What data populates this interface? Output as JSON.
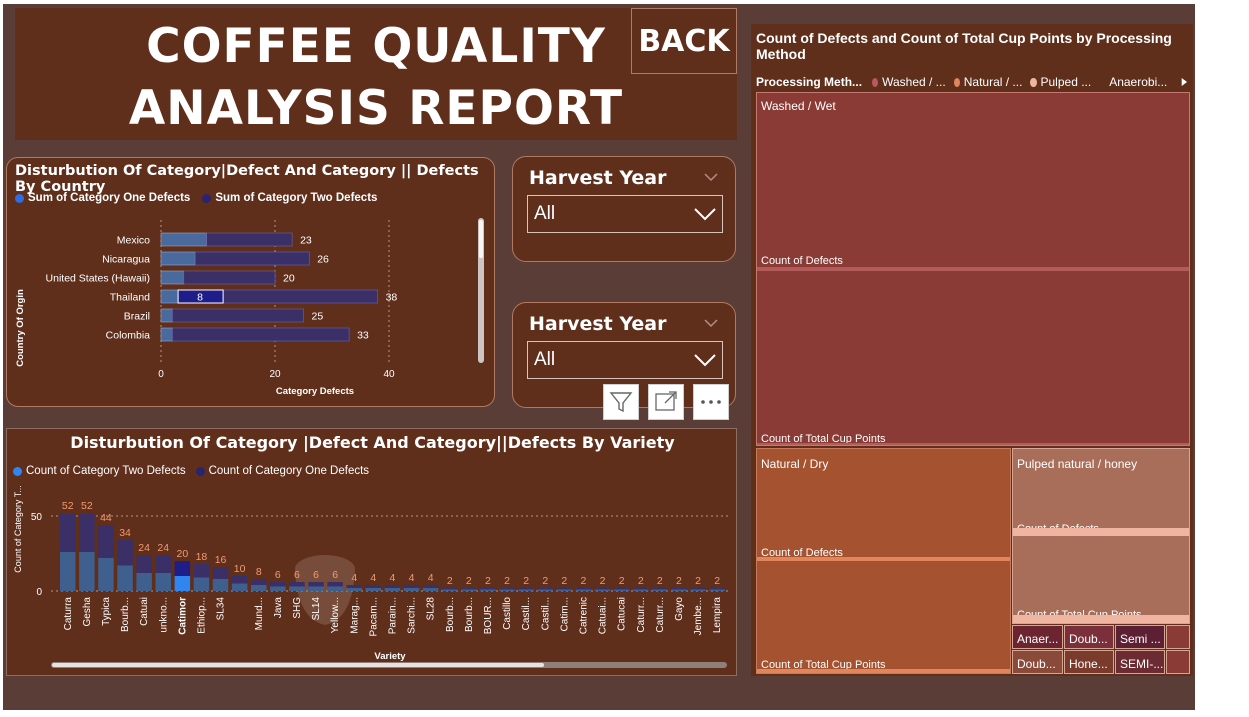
{
  "header": {
    "title_line1": "COFFEE QUALITY",
    "title_line2": "ANALYSIS REPORT",
    "back_label": "BACK"
  },
  "country_chart": {
    "title": "Disturbution Of Category|Defect And Category || Defects By Country",
    "legend": [
      "Sum of Category One Defects",
      "Sum of Category Two Defects"
    ],
    "ylabel": "Country Of Orgin",
    "xlabel": "Category Defects"
  },
  "slicer1": {
    "title": "Harvest Year",
    "value": "All"
  },
  "slicer2": {
    "title": "Harvest Year",
    "value": "All"
  },
  "variety_chart": {
    "title": "Disturbution Of Category |Defect And Category||Defects By Variety",
    "legend": [
      "Count of Category Two Defects",
      "Count of Category One Defects"
    ],
    "ylabel": "Count of Category T...",
    "xlabel": "Variety"
  },
  "treemap": {
    "title": "Count of Defects and Count of Total Cup Points by Processing Method",
    "legend_label": "Processing Meth...",
    "legend_items": [
      "Washed / ...",
      "Natural / ...",
      "Pulped ...",
      "Anaerobi..."
    ],
    "colors": {
      "washed": "#8b3b35",
      "natural": "#a4522f",
      "pulped": "#a86e5a",
      "anaerobic": "#6b2430"
    },
    "cells": {
      "washed": "Washed / Wet",
      "natural": "Natural / Dry",
      "pulped": "Pulped natural / honey",
      "defects": "Count of Defects",
      "cup_points": "Count of Total Cup Points"
    },
    "small_cells": [
      "Anaer...",
      "Doub...",
      "Semi ...",
      "Doub...",
      "Hone...",
      "SEMI-..."
    ]
  },
  "chart_data": [
    {
      "type": "bar",
      "orientation": "horizontal",
      "stacked": true,
      "title": "Disturbution Of Category|Defect And Category || Defects By Country",
      "xlabel": "Category Defects",
      "ylabel": "Country Of Orgin",
      "xlim": [
        0,
        45
      ],
      "xticks": [
        0,
        20,
        40
      ],
      "grid": true,
      "legend_position": "top-left",
      "categories": [
        "Mexico",
        "Nicaragua",
        "United States (Hawaii)",
        "Thailand",
        "Brazil",
        "Colombia"
      ],
      "totals": [
        23,
        26,
        20,
        38,
        25,
        33
      ],
      "series": [
        {
          "name": "Sum of Category One Defects",
          "color": "#4a6a9e",
          "values": [
            8,
            6,
            4,
            3,
            2,
            2
          ]
        },
        {
          "name": "Sum of Category Two Defects",
          "color": "#3a2f66",
          "values": [
            15,
            20,
            16,
            35,
            23,
            31
          ]
        }
      ],
      "annotations": [
        {
          "category": "Thailand",
          "label": "8"
        }
      ]
    },
    {
      "type": "bar",
      "stacked": true,
      "title": "Disturbution Of Category |Defect And Category||Defects By Variety",
      "xlabel": "Variety",
      "ylabel": "Count of Category T...",
      "ylim": [
        0,
        60
      ],
      "yticks": [
        0,
        50
      ],
      "grid": true,
      "legend_position": "top-left",
      "categories": [
        "Caturra",
        "Gesha",
        "Typica",
        "Bourb...",
        "Catuai",
        "unkno...",
        "Catimor",
        "Ethiop...",
        "SL34",
        "",
        "Mund...",
        "Java",
        "SHG",
        "SL14",
        "Yellow...",
        "Marag...",
        "Pacam...",
        "Parain...",
        "Sarchi...",
        "SL28",
        "Bourb...",
        "Bourb...",
        "BOUR...",
        "Castillo",
        "Castil...",
        "Castil...",
        "Catim...",
        "Catrenic",
        "Catuai...",
        "Catucai",
        "Caturr...",
        "Caturr...",
        "Gayo",
        "Jembe...",
        "Lempira"
      ],
      "totals": [
        52,
        52,
        44,
        34,
        24,
        24,
        20,
        18,
        16,
        10,
        8,
        6,
        6,
        6,
        6,
        4,
        4,
        4,
        4,
        4,
        2,
        2,
        2,
        2,
        2,
        2,
        2,
        2,
        2,
        2,
        2,
        2,
        2,
        2,
        2
      ],
      "highlighted_category": "Catimor",
      "series": [
        {
          "name": "Count of Category Two Defects",
          "color": "#3f5f8e",
          "values": [
            26,
            26,
            22,
            17,
            12,
            12,
            10,
            9,
            8,
            5,
            4,
            3,
            3,
            3,
            3,
            2,
            2,
            2,
            2,
            2,
            1,
            1,
            1,
            1,
            1,
            1,
            1,
            1,
            1,
            1,
            1,
            1,
            1,
            1,
            1
          ]
        },
        {
          "name": "Count of Category One Defects",
          "color": "#3a2f66",
          "values": [
            26,
            26,
            22,
            17,
            12,
            12,
            10,
            9,
            8,
            5,
            4,
            3,
            3,
            3,
            3,
            2,
            2,
            2,
            2,
            2,
            1,
            1,
            1,
            1,
            1,
            1,
            1,
            1,
            1,
            1,
            1,
            1,
            1,
            1,
            1
          ]
        }
      ]
    },
    {
      "type": "treemap",
      "title": "Count of Defects and Count of Total Cup Points by Processing Method",
      "legend_title": "Processing Meth...",
      "groups": [
        "Washed / Wet",
        "Natural / Dry",
        "Pulped natural / honey",
        "Anaer...",
        "Doub...",
        "Semi ...",
        "Doub...",
        "Hone...",
        "SEMI-..."
      ],
      "measures": [
        "Count of Defects",
        "Count of Total Cup Points"
      ]
    }
  ]
}
